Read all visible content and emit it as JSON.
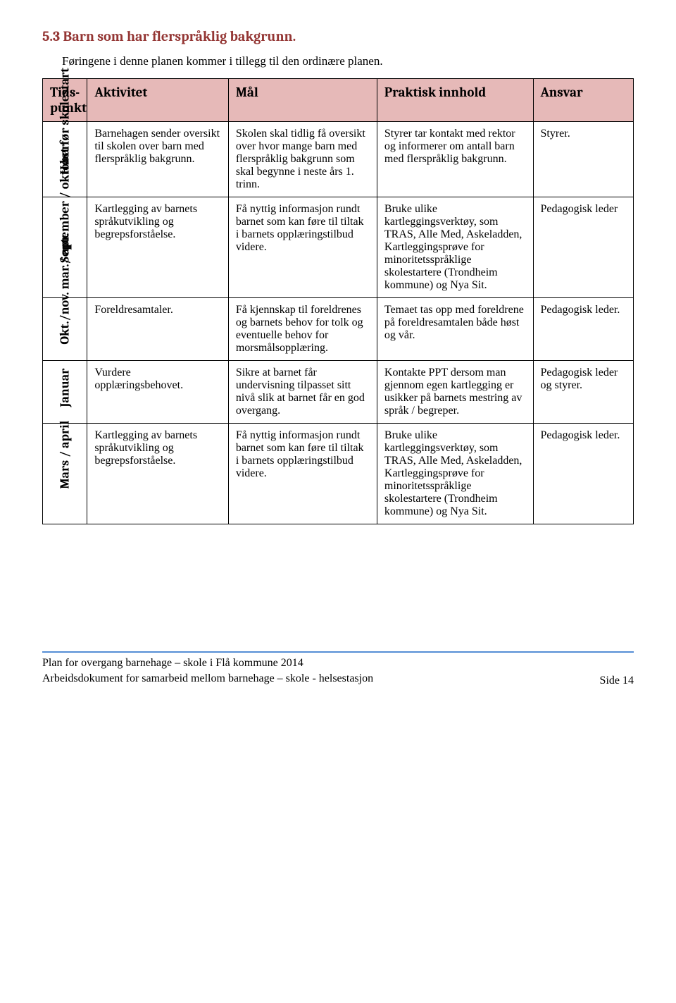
{
  "heading": {
    "text": "5.3 Barn som har flerspråklig bakgrunn.",
    "color": "#943634"
  },
  "intro": "Føringene i denne planen kommer i tillegg til den ordinære planen.",
  "table": {
    "header_bg": "#e6b9b8",
    "columns": [
      "Tids-punkt",
      "Aktivitet",
      "Mål",
      "Praktisk innhold",
      "Ansvar"
    ],
    "rows": [
      {
        "time": "Høst før skolestart",
        "activity": "Barnehagen sender oversikt til skolen over barn med flerspråklig bakgrunn.",
        "goal": "Skolen skal tidlig få oversikt over hvor mange barn med flerspråklig bakgrunn som skal begynne i neste års 1. trinn.",
        "practical": "Styrer tar kontakt med rektor og informerer om antall barn med flerspråklig bakgrunn.",
        "ansvar": "Styrer."
      },
      {
        "time": "September / oktober",
        "activity": "Kartlegging av barnets språkutvikling og begrepsforståelse.",
        "goal": "Få nyttig informasjon rundt barnet som kan føre til tiltak i barnets opplæringstilbud videre.",
        "practical": "Bruke ulike kartleggingsverktøy, som TRAS, Alle Med, Askeladden, Kartleggingsprøve for minoritetsspråklige skolestartere (Trondheim kommune) og Nya Sit.",
        "ansvar": "Pedagogisk leder"
      },
      {
        "time": "Okt./nov. mar./ apr.",
        "activity": "Foreldresamtaler.",
        "goal": "Få kjennskap til foreldrenes og barnets behov for tolk og eventuelle behov for morsmålsopplæring.",
        "practical": "Temaet tas opp med foreldrene på foreldresamtalen både høst og vår.",
        "ansvar": "Pedagogisk leder."
      },
      {
        "time": "Januar",
        "activity": "Vurdere opplæringsbehovet.",
        "goal": "Sikre at barnet får undervisning tilpasset sitt nivå slik at barnet får en god overgang.",
        "practical": "Kontakte PPT dersom man gjennom egen kartlegging er usikker på barnets mestring av språk / begreper.",
        "ansvar": "Pedagogisk leder og styrer."
      },
      {
        "time": "Mars / april",
        "activity": "Kartlegging av barnets språkutvikling og begrepsforståelse.",
        "goal": "Få nyttig informasjon rundt barnet som kan føre til tiltak i barnets opplæringstilbud videre.",
        "practical": "Bruke ulike kartleggingsverktøy, som TRAS, Alle Med, Askeladden, Kartleggingsprøve for minoritetsspråklige skolestartere (Trondheim kommune) og Nya Sit.",
        "ansvar": "Pedagogisk leder."
      }
    ]
  },
  "footer": {
    "line1": "Plan for overgang barnehage – skole i Flå kommune 2014",
    "line2": "Arbeidsdokument for samarbeid mellom barnehage – skole - helsestasjon",
    "page": "Side 14"
  }
}
